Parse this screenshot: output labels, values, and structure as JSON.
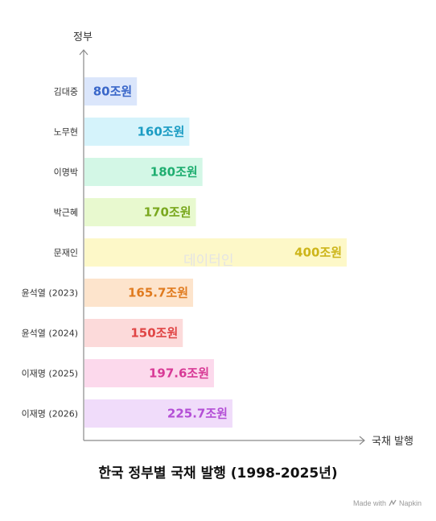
{
  "chart_data": {
    "type": "bar",
    "orientation": "horizontal",
    "title": "한국 정부별 국채 발행 (1998-2025년)",
    "xlabel": "국채 발행",
    "ylabel": "정부",
    "categories": [
      "김대중",
      "노무현",
      "이명박",
      "박근혜",
      "문재인",
      "윤석열 (2023)",
      "윤석열 (2024)",
      "이재명 (2025)",
      "이재명 (2026)"
    ],
    "values": [
      80,
      160,
      180,
      170,
      400,
      165.7,
      150,
      197.6,
      225.7
    ],
    "value_labels": [
      "80조원",
      "160조원",
      "180조원",
      "170조원",
      "400조원",
      "165.7조원",
      "150조원",
      "197.6조원",
      "225.7조원"
    ],
    "unit": "조원",
    "xlim": [
      0,
      400
    ],
    "grid": false,
    "legend": "none",
    "bar_colors": [
      "#dbe6fb",
      "#d5f3fb",
      "#d3f7e6",
      "#e8f9cf",
      "#fdf8c8",
      "#fde4cc",
      "#fcdada",
      "#fcd9ec",
      "#f0dcfa"
    ],
    "label_colors": [
      "#3a67c9",
      "#1b9cc3",
      "#1fae70",
      "#7aa81f",
      "#cdb51a",
      "#e07b1f",
      "#e04545",
      "#d83a96",
      "#b44fd6"
    ]
  },
  "watermark": "데이터인",
  "footer": {
    "text": "Made with",
    "brand": "Napkin"
  }
}
